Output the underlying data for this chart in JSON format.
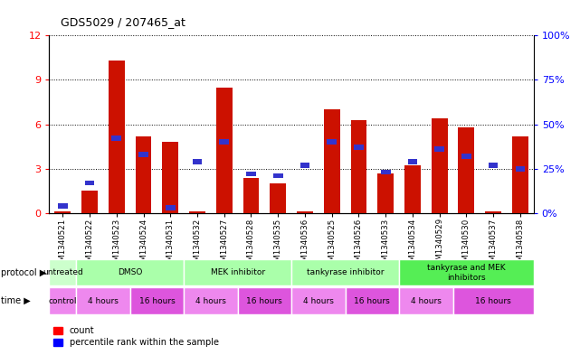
{
  "title": "GDS5029 / 207465_at",
  "samples": [
    "GSM1340521",
    "GSM1340522",
    "GSM1340523",
    "GSM1340524",
    "GSM1340531",
    "GSM1340532",
    "GSM1340527",
    "GSM1340528",
    "GSM1340535",
    "GSM1340536",
    "GSM1340525",
    "GSM1340526",
    "GSM1340533",
    "GSM1340534",
    "GSM1340529",
    "GSM1340530",
    "GSM1340537",
    "GSM1340538"
  ],
  "red_values": [
    0.1,
    1.5,
    10.3,
    5.2,
    4.8,
    0.1,
    8.5,
    2.4,
    2.0,
    0.1,
    7.0,
    6.3,
    2.7,
    3.2,
    6.4,
    5.8,
    0.1,
    5.2
  ],
  "blue_percentile": [
    4,
    17,
    42,
    33,
    3,
    29,
    40,
    22,
    21,
    27,
    40,
    37,
    23,
    29,
    36,
    32,
    27,
    25
  ],
  "ylim_left": [
    0,
    12
  ],
  "ylim_right": [
    0,
    100
  ],
  "yticks_left": [
    0,
    3,
    6,
    9,
    12
  ],
  "yticks_right": [
    0,
    25,
    50,
    75,
    100
  ],
  "bar_color": "#cc1100",
  "blue_color": "#3333cc",
  "proto_data": [
    [
      0,
      1,
      "untreated",
      "#ccffcc"
    ],
    [
      1,
      5,
      "DMSO",
      "#aaffaa"
    ],
    [
      5,
      9,
      "MEK inhibitor",
      "#aaffaa"
    ],
    [
      9,
      13,
      "tankyrase inhibitor",
      "#aaffaa"
    ],
    [
      13,
      18,
      "tankyrase and MEK\ninhibitors",
      "#55ee55"
    ]
  ],
  "time_data": [
    [
      0,
      1,
      "control",
      "#ee88ee"
    ],
    [
      1,
      3,
      "4 hours",
      "#ee88ee"
    ],
    [
      3,
      5,
      "16 hours",
      "#dd55dd"
    ],
    [
      5,
      7,
      "4 hours",
      "#ee88ee"
    ],
    [
      7,
      9,
      "16 hours",
      "#dd55dd"
    ],
    [
      9,
      11,
      "4 hours",
      "#ee88ee"
    ],
    [
      11,
      13,
      "16 hours",
      "#dd55dd"
    ],
    [
      13,
      15,
      "4 hours",
      "#ee88ee"
    ],
    [
      15,
      18,
      "16 hours",
      "#dd55dd"
    ]
  ]
}
